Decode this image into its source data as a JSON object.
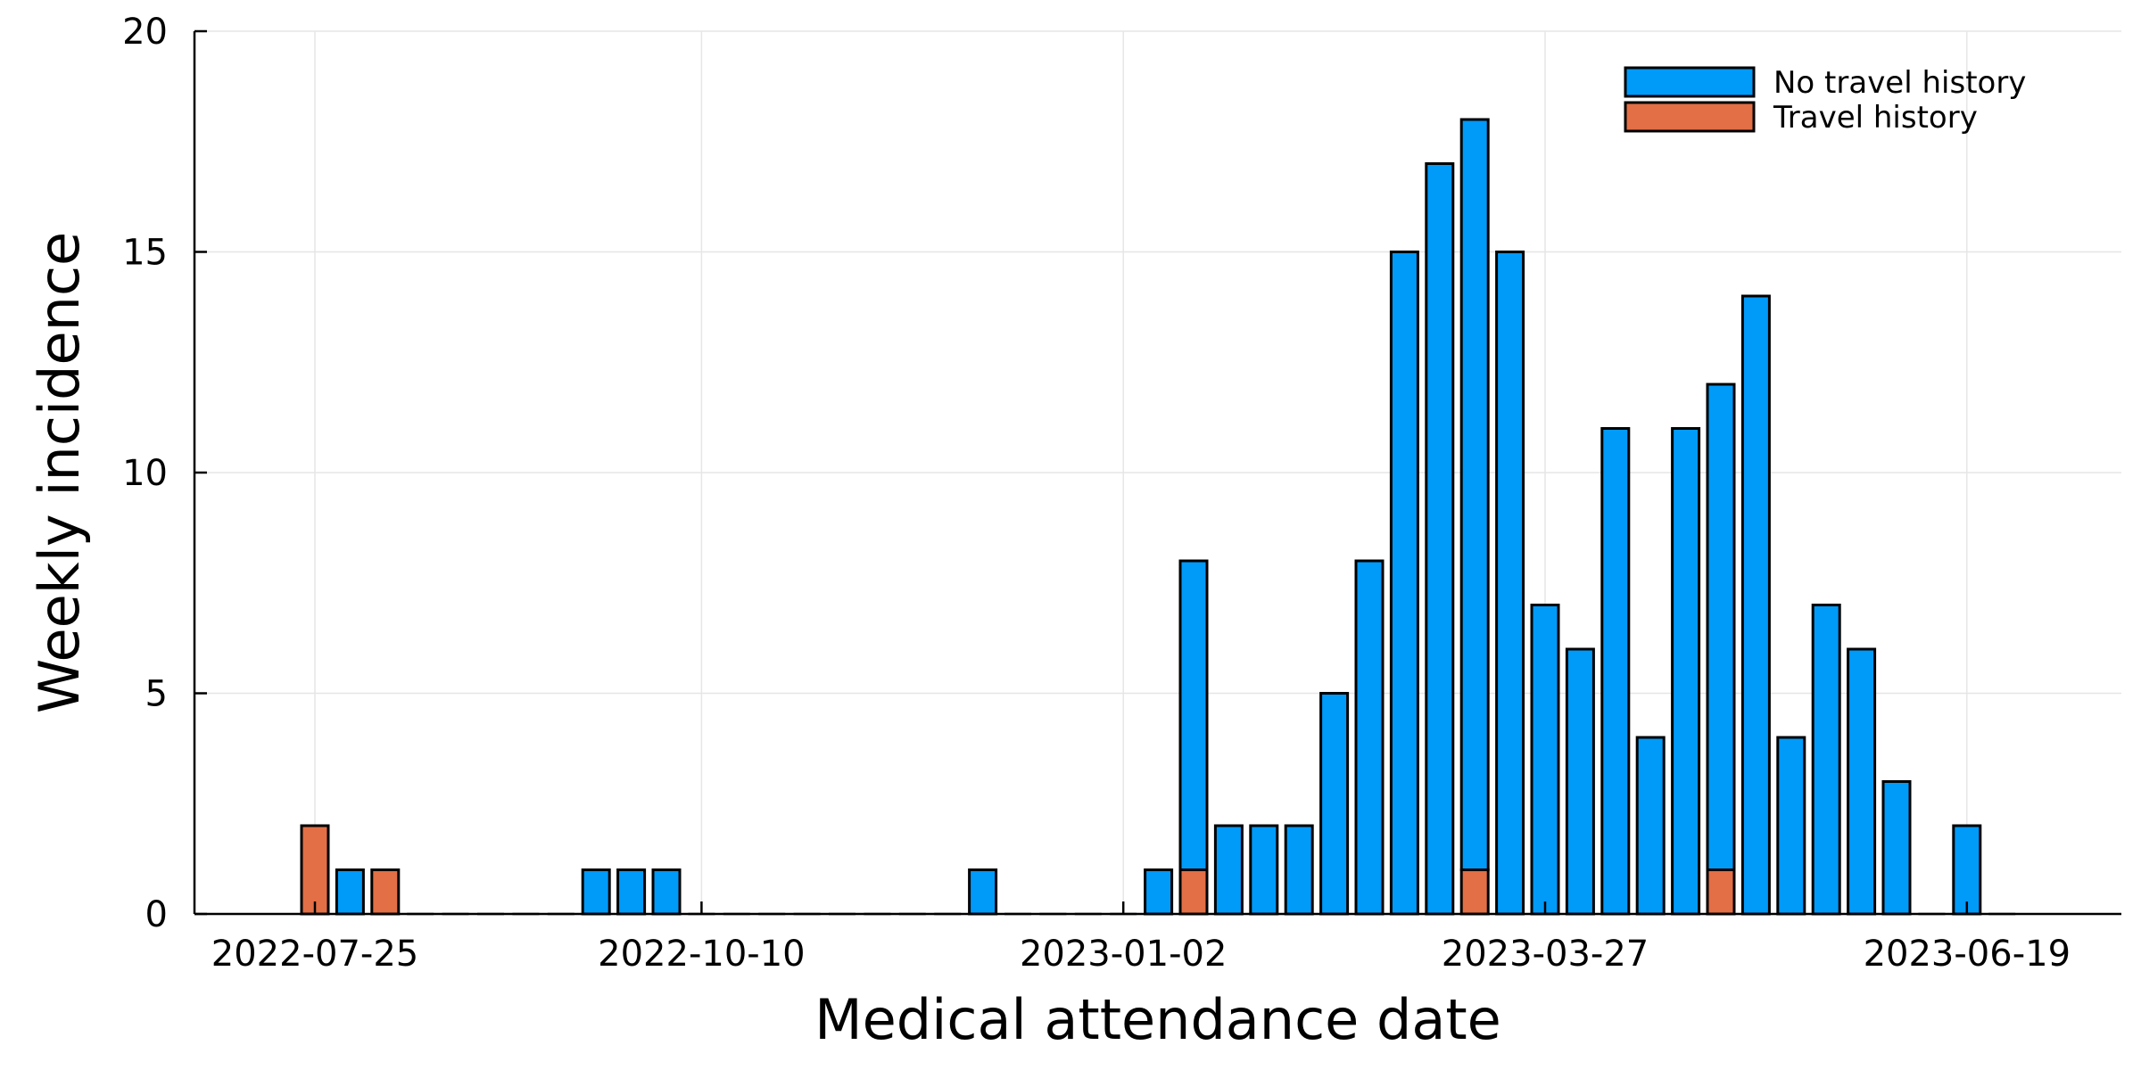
{
  "chart_data": {
    "type": "bar",
    "stacked": true,
    "xlabel": "Medical attendance date",
    "ylabel": "Weekly incidence",
    "ylim": [
      0,
      20
    ],
    "yticks": [
      0,
      5,
      10,
      15,
      20
    ],
    "xticks": [
      "2022-07-25",
      "2022-10-10",
      "2023-01-02",
      "2023-03-27",
      "2023-06-19"
    ],
    "grid": true,
    "legend_position": "top-right",
    "categories": [
      "2022-07-25",
      "2022-08-01",
      "2022-08-08",
      "2022-08-15",
      "2022-08-22",
      "2022-08-29",
      "2022-09-05",
      "2022-09-12",
      "2022-09-19",
      "2022-09-26",
      "2022-10-03",
      "2022-10-10",
      "2022-10-17",
      "2022-10-24",
      "2022-10-31",
      "2022-11-07",
      "2022-11-14",
      "2022-11-21",
      "2022-11-28",
      "2022-12-05",
      "2022-12-12",
      "2022-12-19",
      "2022-12-26",
      "2023-01-02",
      "2023-01-09",
      "2023-01-16",
      "2023-01-23",
      "2023-01-30",
      "2023-02-06",
      "2023-02-13",
      "2023-02-20",
      "2023-02-27",
      "2023-03-06",
      "2023-03-13",
      "2023-03-20",
      "2023-03-27",
      "2023-04-03",
      "2023-04-10",
      "2023-04-17",
      "2023-04-24",
      "2023-05-01",
      "2023-05-08",
      "2023-05-15",
      "2023-05-22",
      "2023-05-29",
      "2023-06-05",
      "2023-06-12",
      "2023-06-19",
      "2023-06-26"
    ],
    "series": [
      {
        "name": "No travel history",
        "color": "#009af9",
        "values": [
          0,
          1,
          0,
          0,
          0,
          0,
          0,
          0,
          1,
          1,
          1,
          0,
          0,
          0,
          0,
          0,
          0,
          0,
          0,
          1,
          0,
          0,
          0,
          0,
          1,
          7,
          2,
          2,
          2,
          5,
          8,
          15,
          17,
          17,
          15,
          7,
          6,
          11,
          4,
          11,
          11,
          14,
          4,
          7,
          6,
          3,
          0,
          2,
          0
        ]
      },
      {
        "name": "Travel history",
        "color": "#e26f46",
        "values": [
          2,
          0,
          1,
          0,
          0,
          0,
          0,
          0,
          0,
          0,
          0,
          0,
          0,
          0,
          0,
          0,
          0,
          0,
          0,
          0,
          0,
          0,
          0,
          0,
          0,
          1,
          0,
          0,
          0,
          0,
          0,
          0,
          0,
          1,
          0,
          0,
          0,
          0,
          0,
          0,
          1,
          0,
          0,
          0,
          0,
          0,
          0,
          0,
          0
        ]
      }
    ]
  }
}
